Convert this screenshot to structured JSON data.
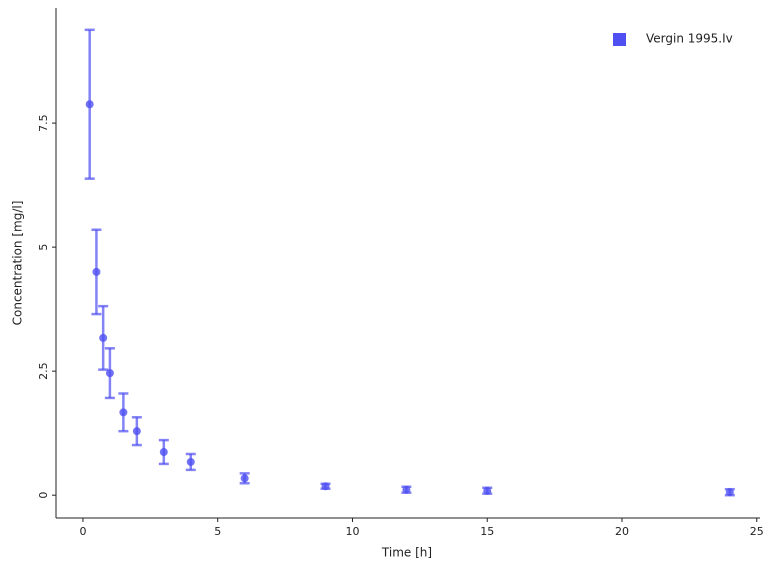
{
  "chart_data": {
    "type": "scatter",
    "x_label": "Time [h]",
    "y_label": "Concentration [mg/l]",
    "xlim": [
      -1,
      25.12
    ],
    "ylim": [
      -0.46,
      9.82
    ],
    "xticks": [
      0,
      5,
      10,
      15,
      20,
      25
    ],
    "yticks": [
      0,
      2.5,
      5,
      7.5
    ],
    "legend": "top-right",
    "series": [
      {
        "name": "Vergin 1995.Iv",
        "color": "#4f4ff2",
        "x": [
          0.25,
          0.5,
          0.75,
          1,
          1.5,
          2,
          3,
          4,
          6,
          9,
          12,
          15,
          24
        ],
        "values": [
          7.88,
          4.5,
          3.17,
          2.46,
          1.67,
          1.29,
          0.87,
          0.67,
          0.34,
          0.18,
          0.11,
          0.09,
          0.06
        ],
        "errors": [
          1.5,
          0.85,
          0.64,
          0.5,
          0.38,
          0.28,
          0.24,
          0.16,
          0.1,
          0.05,
          0.06,
          0.06,
          0.06
        ]
      }
    ]
  }
}
